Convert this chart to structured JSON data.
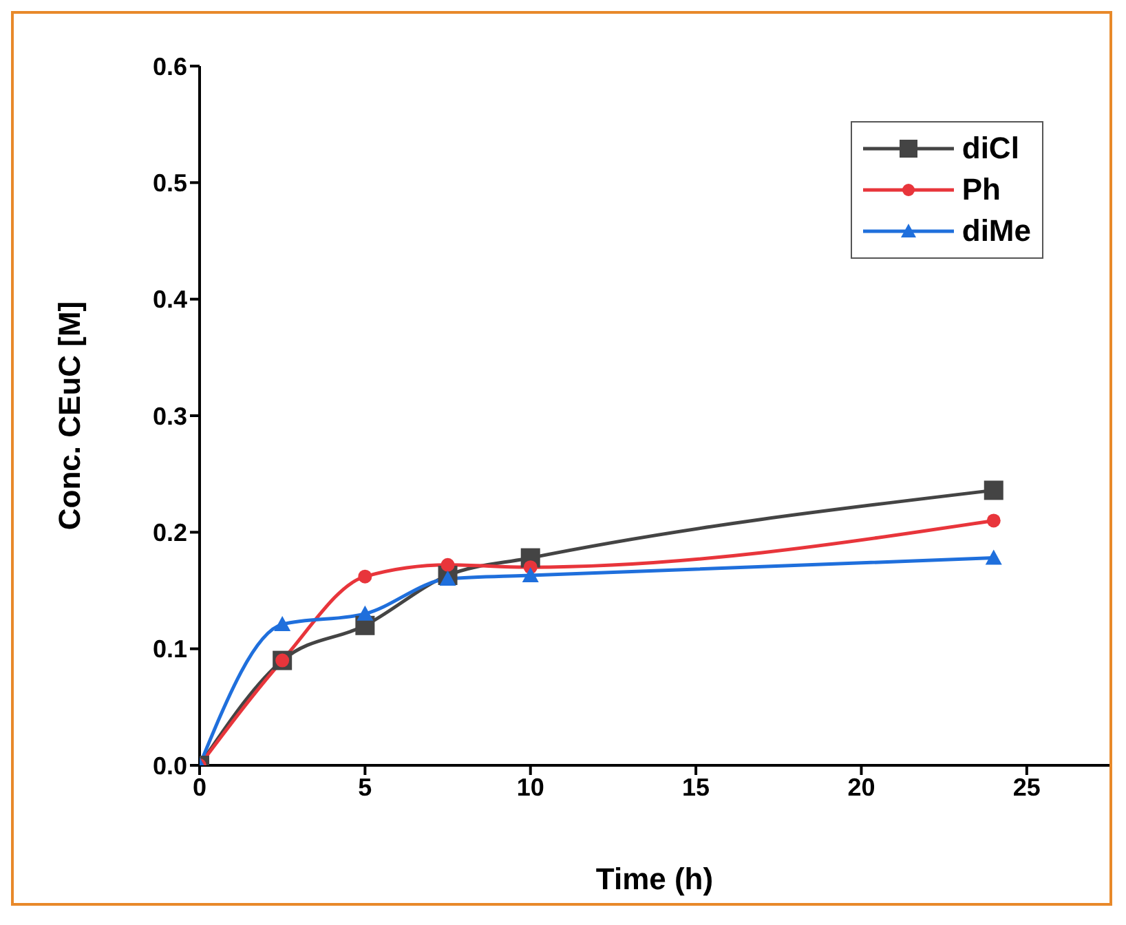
{
  "chart_data": {
    "type": "line",
    "xlabel": "Time (h)",
    "ylabel": "Conc. CEuC [M]",
    "xlim": [
      0,
      27.5
    ],
    "xticks": [
      0,
      5,
      10,
      15,
      20,
      25
    ],
    "ylim": [
      0,
      0.6
    ],
    "yticks": [
      {
        "value": 0,
        "label": "0.0"
      },
      0.1,
      0.2,
      0.3,
      0.4,
      0.5,
      0.6
    ],
    "grid": false,
    "legend": "top right",
    "line_style": "solid",
    "x": [
      0,
      2.5,
      5,
      7.5,
      10,
      24
    ],
    "series": [
      {
        "name": "diCl",
        "color": "#444444",
        "marker": "square",
        "values": [
          0,
          0.09,
          0.12,
          0.163,
          0.178,
          0.236
        ]
      },
      {
        "name": "Ph",
        "color": "#e8353b",
        "marker": "circle",
        "values": [
          0,
          0.09,
          0.162,
          0.172,
          0.17,
          0.21
        ]
      },
      {
        "name": "diMe",
        "color": "#1f6fdc",
        "marker": "triangle",
        "values": [
          0,
          0.121,
          0.13,
          0.16,
          0.163,
          0.178
        ]
      }
    ]
  }
}
